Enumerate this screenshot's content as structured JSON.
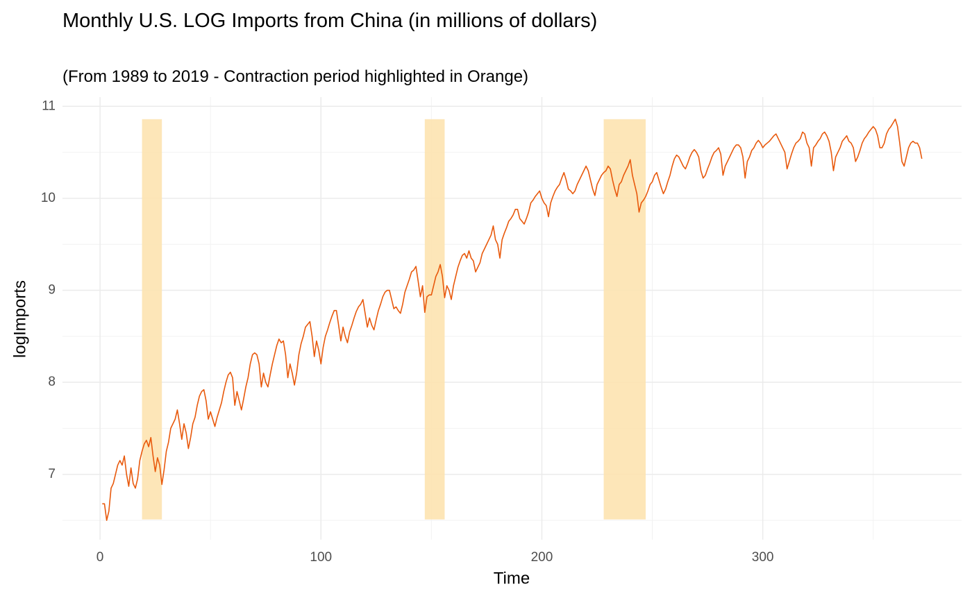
{
  "chart_data": {
    "type": "line",
    "title": "Monthly U.S. LOG Imports from China (in millions of dollars)",
    "subtitle": "(From 1989 to 2019 - Contraction period highlighted in Orange)",
    "x_label": "Time",
    "y_label": "logImports",
    "color": "#e8590c",
    "highlight_color": "#fde3b0",
    "grid": true,
    "xlim": [
      -17,
      390
    ],
    "ylim": [
      6.29,
      11.1
    ],
    "xticks": [
      0,
      100,
      200,
      300
    ],
    "yticks": [
      7,
      8,
      9,
      10,
      11
    ],
    "x_minor_grid": [
      50,
      150,
      250,
      350
    ],
    "y_minor_grid": [
      6.5,
      7.5,
      8.5,
      9.5,
      10.5
    ],
    "highlights": [
      {
        "xmin": 19,
        "xmax": 28,
        "ymin": 6.51,
        "ymax": 10.86
      },
      {
        "xmin": 147,
        "xmax": 156,
        "ymin": 6.51,
        "ymax": 10.86
      },
      {
        "xmin": 228,
        "xmax": 247,
        "ymin": 6.51,
        "ymax": 10.86
      }
    ],
    "x": [
      1,
      2,
      3,
      4,
      5,
      6,
      7,
      8,
      9,
      10,
      11,
      12,
      13,
      14,
      15,
      16,
      17,
      18,
      19,
      20,
      21,
      22,
      23,
      24,
      25,
      26,
      27,
      28,
      29,
      30,
      31,
      32,
      33,
      34,
      35,
      36,
      37,
      38,
      39,
      40,
      41,
      42,
      43,
      44,
      45,
      46,
      47,
      48,
      49,
      50,
      51,
      52,
      53,
      54,
      55,
      56,
      57,
      58,
      59,
      60,
      61,
      62,
      63,
      64,
      65,
      66,
      67,
      68,
      69,
      70,
      71,
      72,
      73,
      74,
      75,
      76,
      77,
      78,
      79,
      80,
      81,
      82,
      83,
      84,
      85,
      86,
      87,
      88,
      89,
      90,
      91,
      92,
      93,
      94,
      95,
      96,
      97,
      98,
      99,
      100,
      101,
      102,
      103,
      104,
      105,
      106,
      107,
      108,
      109,
      110,
      111,
      112,
      113,
      114,
      115,
      116,
      117,
      118,
      119,
      120,
      121,
      122,
      123,
      124,
      125,
      126,
      127,
      128,
      129,
      130,
      131,
      132,
      133,
      134,
      135,
      136,
      137,
      138,
      139,
      140,
      141,
      142,
      143,
      144,
      145,
      146,
      147,
      148,
      149,
      150,
      151,
      152,
      153,
      154,
      155,
      156,
      157,
      158,
      159,
      160,
      161,
      162,
      163,
      164,
      165,
      166,
      167,
      168,
      169,
      170,
      171,
      172,
      173,
      174,
      175,
      176,
      177,
      178,
      179,
      180,
      181,
      182,
      183,
      184,
      185,
      186,
      187,
      188,
      189,
      190,
      191,
      192,
      193,
      194,
      195,
      196,
      197,
      198,
      199,
      200,
      201,
      202,
      203,
      204,
      205,
      206,
      207,
      208,
      209,
      210,
      211,
      212,
      213,
      214,
      215,
      216,
      217,
      218,
      219,
      220,
      221,
      222,
      223,
      224,
      225,
      226,
      227,
      228,
      229,
      230,
      231,
      232,
      233,
      234,
      235,
      236,
      237,
      238,
      239,
      240,
      241,
      242,
      243,
      244,
      245,
      246,
      247,
      248,
      249,
      250,
      251,
      252,
      253,
      254,
      255,
      256,
      257,
      258,
      259,
      260,
      261,
      262,
      263,
      264,
      265,
      266,
      267,
      268,
      269,
      270,
      271,
      272,
      273,
      274,
      275,
      276,
      277,
      278,
      279,
      280,
      281,
      282,
      283,
      284,
      285,
      286,
      287,
      288,
      289,
      290,
      291,
      292,
      293,
      294,
      295,
      296,
      297,
      298,
      299,
      300,
      301,
      302,
      303,
      304,
      305,
      306,
      307,
      308,
      309,
      310,
      311,
      312,
      313,
      314,
      315,
      316,
      317,
      318,
      319,
      320,
      321,
      322,
      323,
      324,
      325,
      326,
      327,
      328,
      329,
      330,
      331,
      332,
      333,
      334,
      335,
      336,
      337,
      338,
      339,
      340,
      341,
      342,
      343,
      344,
      345,
      346,
      347,
      348,
      349,
      350,
      351,
      352,
      353,
      354,
      355,
      356,
      357,
      358,
      359,
      360,
      361,
      362,
      363,
      364,
      365,
      366,
      367,
      368,
      369,
      370,
      371,
      372
    ],
    "values": [
      6.68,
      6.68,
      6.5,
      6.6,
      6.85,
      6.9,
      7.0,
      7.1,
      7.15,
      7.1,
      7.2,
      7.0,
      6.87,
      7.07,
      6.9,
      6.85,
      6.95,
      7.15,
      7.25,
      7.33,
      7.37,
      7.3,
      7.4,
      7.2,
      7.03,
      7.18,
      7.1,
      6.89,
      7.05,
      7.25,
      7.35,
      7.5,
      7.55,
      7.6,
      7.7,
      7.55,
      7.38,
      7.55,
      7.45,
      7.28,
      7.4,
      7.55,
      7.62,
      7.75,
      7.85,
      7.9,
      7.92,
      7.8,
      7.6,
      7.68,
      7.6,
      7.52,
      7.62,
      7.7,
      7.78,
      7.9,
      8.0,
      8.08,
      8.11,
      8.05,
      7.75,
      7.9,
      7.8,
      7.7,
      7.82,
      7.95,
      8.05,
      8.2,
      8.3,
      8.32,
      8.3,
      8.2,
      7.95,
      8.1,
      8.0,
      7.95,
      8.08,
      8.2,
      8.3,
      8.4,
      8.47,
      8.43,
      8.45,
      8.3,
      8.05,
      8.2,
      8.1,
      7.97,
      8.1,
      8.3,
      8.42,
      8.5,
      8.6,
      8.63,
      8.66,
      8.5,
      8.28,
      8.45,
      8.35,
      8.2,
      8.38,
      8.5,
      8.57,
      8.65,
      8.72,
      8.78,
      8.78,
      8.62,
      8.45,
      8.6,
      8.5,
      8.43,
      8.55,
      8.62,
      8.7,
      8.77,
      8.82,
      8.85,
      8.9,
      8.75,
      8.6,
      8.7,
      8.62,
      8.57,
      8.68,
      8.78,
      8.85,
      8.93,
      8.98,
      9.0,
      9.0,
      8.9,
      8.8,
      8.82,
      8.78,
      8.75,
      8.85,
      8.98,
      9.05,
      9.12,
      9.2,
      9.22,
      9.26,
      9.1,
      8.93,
      9.05,
      8.76,
      8.93,
      8.95,
      8.95,
      9.05,
      9.15,
      9.2,
      9.28,
      9.15,
      8.92,
      9.05,
      9.0,
      8.9,
      9.05,
      9.15,
      9.25,
      9.32,
      9.38,
      9.4,
      9.35,
      9.43,
      9.35,
      9.32,
      9.2,
      9.25,
      9.3,
      9.4,
      9.45,
      9.5,
      9.55,
      9.6,
      9.7,
      9.55,
      9.5,
      9.35,
      9.55,
      9.62,
      9.68,
      9.75,
      9.78,
      9.82,
      9.88,
      9.88,
      9.78,
      9.75,
      9.72,
      9.78,
      9.85,
      9.95,
      9.98,
      10.02,
      10.05,
      10.08,
      10.0,
      9.95,
      9.92,
      9.8,
      9.95,
      10.02,
      10.08,
      10.12,
      10.15,
      10.22,
      10.28,
      10.2,
      10.1,
      10.08,
      10.05,
      10.08,
      10.15,
      10.2,
      10.25,
      10.3,
      10.35,
      10.3,
      10.2,
      10.1,
      10.03,
      10.15,
      10.2,
      10.25,
      10.28,
      10.3,
      10.35,
      10.32,
      10.2,
      10.1,
      10.02,
      10.15,
      10.18,
      10.25,
      10.3,
      10.35,
      10.42,
      10.25,
      10.15,
      10.05,
      9.85,
      9.95,
      9.98,
      10.02,
      10.08,
      10.15,
      10.18,
      10.25,
      10.28,
      10.2,
      10.12,
      10.05,
      10.1,
      10.18,
      10.25,
      10.35,
      10.43,
      10.47,
      10.45,
      10.4,
      10.35,
      10.32,
      10.38,
      10.45,
      10.5,
      10.53,
      10.5,
      10.45,
      10.3,
      10.22,
      10.25,
      10.32,
      10.38,
      10.45,
      10.5,
      10.52,
      10.55,
      10.48,
      10.25,
      10.35,
      10.4,
      10.45,
      10.5,
      10.55,
      10.58,
      10.58,
      10.55,
      10.45,
      10.22,
      10.4,
      10.45,
      10.52,
      10.55,
      10.6,
      10.63,
      10.6,
      10.55,
      10.58,
      10.6,
      10.62,
      10.65,
      10.68,
      10.7,
      10.65,
      10.6,
      10.55,
      10.5,
      10.32,
      10.4,
      10.48,
      10.55,
      10.6,
      10.62,
      10.65,
      10.72,
      10.7,
      10.6,
      10.55,
      10.35,
      10.55,
      10.58,
      10.62,
      10.65,
      10.7,
      10.72,
      10.68,
      10.62,
      10.5,
      10.3,
      10.45,
      10.5,
      10.55,
      10.62,
      10.65,
      10.68,
      10.62,
      10.6,
      10.55,
      10.4,
      10.45,
      10.52,
      10.6,
      10.65,
      10.68,
      10.72,
      10.75,
      10.78,
      10.75,
      10.68,
      10.55,
      10.55,
      10.6,
      10.7,
      10.75,
      10.78,
      10.82,
      10.86,
      10.78,
      10.6,
      10.4,
      10.35,
      10.45,
      10.55,
      10.6,
      10.62,
      10.6,
      10.6,
      10.55,
      10.43
    ]
  }
}
